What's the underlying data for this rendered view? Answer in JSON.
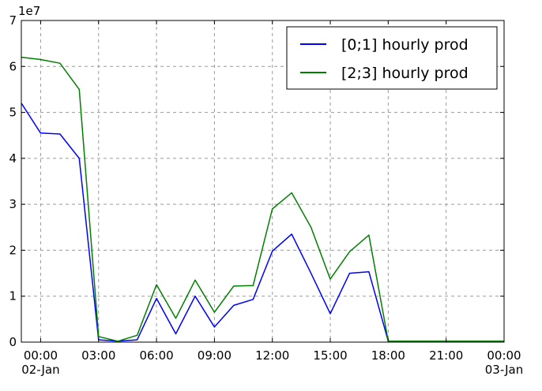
{
  "chart_data": {
    "type": "line",
    "title": "",
    "xlabel": "",
    "ylabel": "",
    "y_scale_label": "1e7",
    "x_hours": [
      0,
      1,
      2,
      3,
      4,
      5,
      6,
      7,
      8,
      9,
      10,
      11,
      12,
      13,
      14,
      15,
      16,
      17,
      18,
      19,
      20,
      21,
      22,
      23,
      24
    ],
    "xlim": [
      -1,
      24
    ],
    "ylim": [
      0,
      7
    ],
    "y_ticks": [
      0,
      1,
      2,
      3,
      4,
      5,
      6,
      7
    ],
    "y_tick_labels": [
      "0",
      "1",
      "2",
      "3",
      "4",
      "5",
      "6",
      "7"
    ],
    "x_ticks": [
      0,
      3,
      6,
      9,
      12,
      15,
      18,
      21,
      24
    ],
    "x_tick_labels": [
      "00:00",
      "03:00",
      "06:00",
      "09:00",
      "12:00",
      "15:00",
      "18:00",
      "21:00",
      "00:00"
    ],
    "x_tick_sublabels": [
      "02-Jan",
      "",
      "",
      "",
      "",
      "",
      "",
      "",
      "03-Jan"
    ],
    "grid": true,
    "legend_position": "top-right",
    "series": [
      {
        "name": "[0;1] hourly prod",
        "color": "#0000ff",
        "x": [
          -1,
          0,
          1,
          2,
          3,
          4,
          5,
          6,
          7,
          8,
          9,
          10,
          11,
          12,
          13,
          14,
          15,
          16,
          17,
          18,
          19,
          20,
          21,
          22,
          23,
          24
        ],
        "values": [
          5.2,
          4.55,
          4.53,
          4.0,
          0.05,
          0.02,
          0.05,
          0.95,
          0.18,
          1.0,
          0.33,
          0.8,
          0.93,
          1.98,
          2.35,
          1.5,
          0.62,
          1.5,
          1.53,
          0.02,
          0.02,
          0.02,
          0.02,
          0.02,
          0.02,
          0.02
        ]
      },
      {
        "name": "[2;3] hourly prod",
        "color": "#008000",
        "x": [
          -1,
          0,
          1,
          2,
          3,
          4,
          5,
          6,
          7,
          8,
          9,
          10,
          11,
          12,
          13,
          14,
          15,
          16,
          17,
          18,
          19,
          20,
          21,
          22,
          23,
          24
        ],
        "values": [
          6.2,
          6.15,
          6.07,
          5.5,
          0.12,
          0.02,
          0.15,
          1.25,
          0.52,
          1.35,
          0.65,
          1.22,
          1.23,
          2.9,
          3.25,
          2.5,
          1.37,
          1.97,
          2.33,
          0.02,
          0.02,
          0.02,
          0.02,
          0.02,
          0.02,
          0.02
        ]
      }
    ]
  }
}
